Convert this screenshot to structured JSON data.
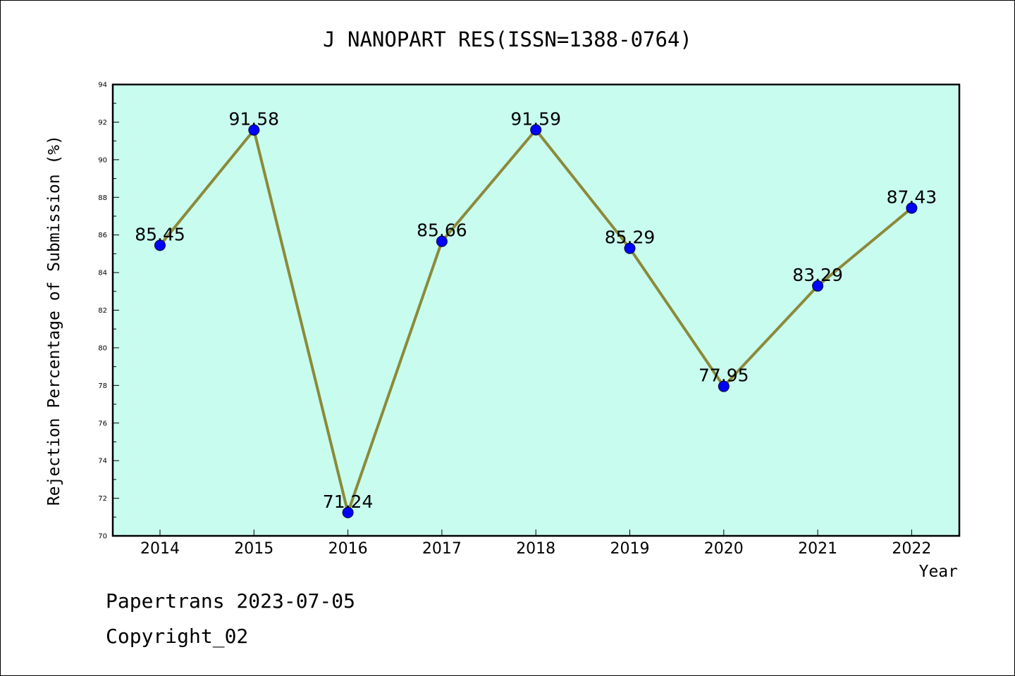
{
  "chart_data": {
    "type": "line",
    "title": "J NANOPART RES(ISSN=1388-0764)",
    "xlabel": "Year",
    "ylabel": "Rejection Percentage of Submission (%)",
    "categories": [
      "2014",
      "2015",
      "2016",
      "2017",
      "2018",
      "2019",
      "2020",
      "2021",
      "2022"
    ],
    "values": [
      85.45,
      91.58,
      71.24,
      85.66,
      91.59,
      85.29,
      77.95,
      83.29,
      87.43
    ],
    "data_labels": [
      "85.45",
      "91.58",
      "71.24",
      "85.66",
      "91.59",
      "85.29",
      "77.95",
      "83.29",
      "87.43"
    ],
    "ylim": [
      70,
      94
    ],
    "yticks": [
      70,
      72,
      74,
      76,
      78,
      80,
      82,
      84,
      86,
      88,
      90,
      92,
      94
    ],
    "grid": false,
    "legend": "none",
    "colors": {
      "plot_background": "#c8fcee",
      "line": "#8b8a3a",
      "marker": "#0000ff",
      "axes": "#000000"
    }
  },
  "footer": {
    "line1": "Papertrans 2023-07-05",
    "line2": "Copyright_02"
  }
}
